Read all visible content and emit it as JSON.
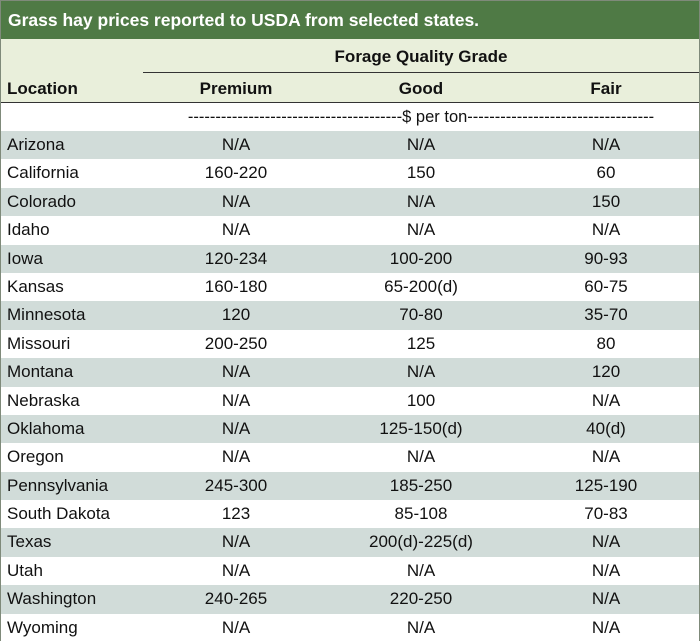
{
  "title": "Grass hay prices reported to USDA from selected states.",
  "header": {
    "group_label": "Forage Quality Grade",
    "location_label": "Location",
    "columns": [
      "Premium",
      "Good",
      "Fair"
    ],
    "unit_text": "---------------------------------------$ per ton----------------------------------"
  },
  "colors": {
    "title_bar": "#4f7a45",
    "header_bg": "#e9efdb",
    "row_shade": "#d1dcd9"
  },
  "rows": [
    {
      "location": "Arizona",
      "premium": "N/A",
      "good": "N/A",
      "fair": "N/A"
    },
    {
      "location": "California",
      "premium": "160-220",
      "good": "150",
      "fair": "60"
    },
    {
      "location": "Colorado",
      "premium": "N/A",
      "good": "N/A",
      "fair": "150"
    },
    {
      "location": "Idaho",
      "premium": "N/A",
      "good": "N/A",
      "fair": "N/A"
    },
    {
      "location": "Iowa",
      "premium": "120-234",
      "good": "100-200",
      "fair": "90-93"
    },
    {
      "location": "Kansas",
      "premium": "160-180",
      "good": "65-200(d)",
      "fair": "60-75"
    },
    {
      "location": "Minnesota",
      "premium": "120",
      "good": "70-80",
      "fair": "35-70"
    },
    {
      "location": "Missouri",
      "premium": "200-250",
      "good": "125",
      "fair": "80"
    },
    {
      "location": "Montana",
      "premium": "N/A",
      "good": "N/A",
      "fair": "120"
    },
    {
      "location": "Nebraska",
      "premium": "N/A",
      "good": "100",
      "fair": "N/A"
    },
    {
      "location": "Oklahoma",
      "premium": "N/A",
      "good": "125-150(d)",
      "fair": "40(d)"
    },
    {
      "location": "Oregon",
      "premium": "N/A",
      "good": "N/A",
      "fair": "N/A"
    },
    {
      "location": "Pennsylvania",
      "premium": "245-300",
      "good": "185-250",
      "fair": "125-190"
    },
    {
      "location": "South Dakota",
      "premium": "123",
      "good": "85-108",
      "fair": "70-83"
    },
    {
      "location": "Texas",
      "premium": "N/A",
      "good": "200(d)-225(d)",
      "fair": "N/A"
    },
    {
      "location": "Utah",
      "premium": "N/A",
      "good": "N/A",
      "fair": "N/A"
    },
    {
      "location": "Washington",
      "premium": "240-265",
      "good": "220-250",
      "fair": "N/A"
    },
    {
      "location": "Wyoming",
      "premium": "N/A",
      "good": "N/A",
      "fair": "N/A"
    }
  ]
}
